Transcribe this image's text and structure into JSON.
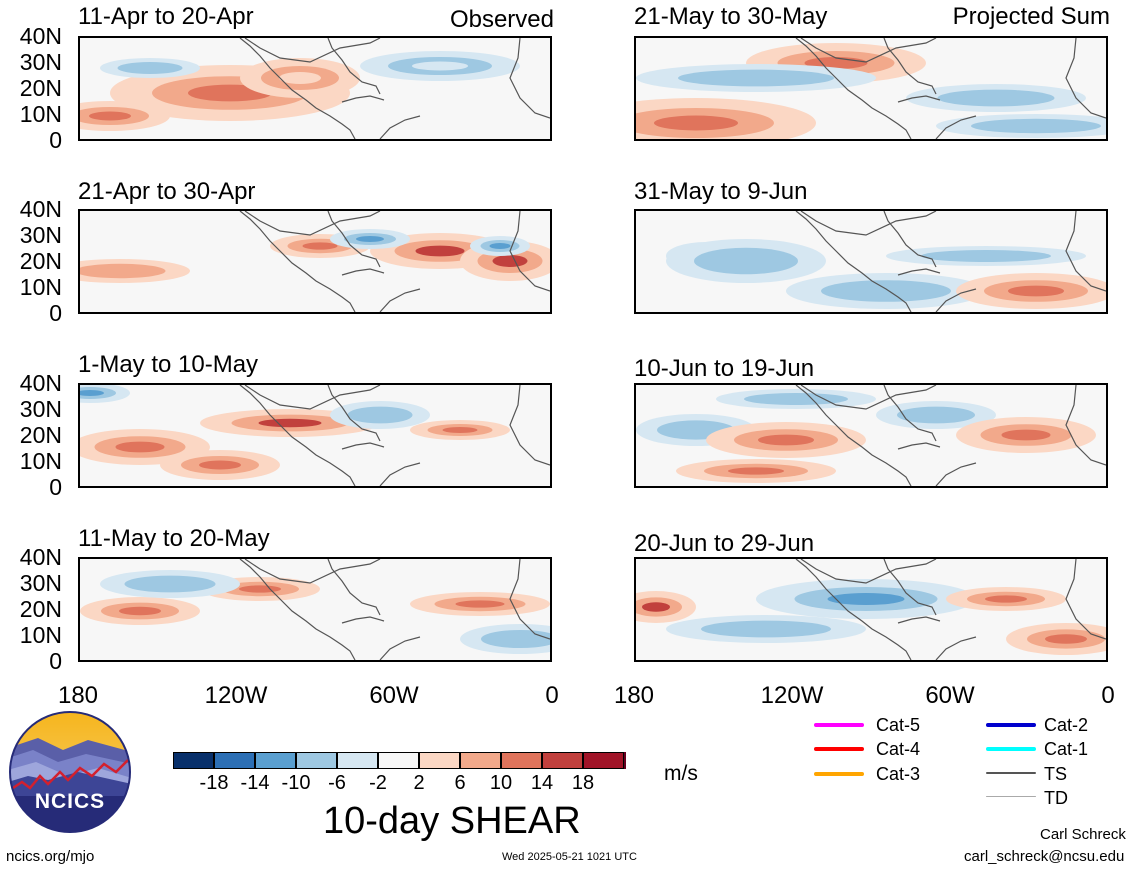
{
  "headers": {
    "left": "Observed",
    "right": "Projected Sum"
  },
  "panels": [
    {
      "title": "11-Apr to 20-Apr",
      "column": "left",
      "row": 0
    },
    {
      "title": "21-Apr to 30-Apr",
      "column": "left",
      "row": 1
    },
    {
      "title": "1-May to 10-May",
      "column": "left",
      "row": 2
    },
    {
      "title": "11-May to 20-May",
      "column": "left",
      "row": 3
    },
    {
      "title": "21-May to 30-May",
      "column": "right",
      "row": 0
    },
    {
      "title": "31-May to 9-Jun",
      "column": "right",
      "row": 1
    },
    {
      "title": "10-Jun to 19-Jun",
      "column": "right",
      "row": 2
    },
    {
      "title": "20-Jun to 29-Jun",
      "column": "right",
      "row": 3
    }
  ],
  "lat_labels": [
    "40N",
    "30N",
    "20N",
    "10N",
    "0"
  ],
  "lon_labels": [
    "180",
    "120W",
    "60W",
    "0"
  ],
  "colorbar": {
    "colors": [
      "#08306b",
      "#2c6fb5",
      "#5a9fd0",
      "#9ec8e2",
      "#d6e7f2",
      "#f7f7f7",
      "#fbd7c4",
      "#f2a98b",
      "#e0745c",
      "#c1403d",
      "#a11428",
      "#67001f"
    ],
    "labels": [
      "-18",
      "-14",
      "-10",
      "-6",
      "-2",
      "2",
      "6",
      "10",
      "14",
      "18"
    ],
    "units": "m/s",
    "title": "10-day SHEAR"
  },
  "track_legend": [
    {
      "label": "Cat-5",
      "color": "#ff00ff"
    },
    {
      "label": "Cat-4",
      "color": "#ff0000"
    },
    {
      "label": "Cat-3",
      "color": "#ffa500"
    },
    {
      "label": "Cat-2",
      "color": "#0000cd"
    },
    {
      "label": "Cat-1",
      "color": "#00ffff"
    },
    {
      "label": "TS",
      "color": "#555555"
    },
    {
      "label": "TD",
      "color": "#aaaaaa"
    }
  ],
  "logo": {
    "text": "NCICS"
  },
  "footer": {
    "left": "ncics.org/mjo",
    "center": "Wed 2025-05-21 1021 UTC",
    "author": "Carl Schreck",
    "email": "carl_schreck@ncsu.edu"
  }
}
